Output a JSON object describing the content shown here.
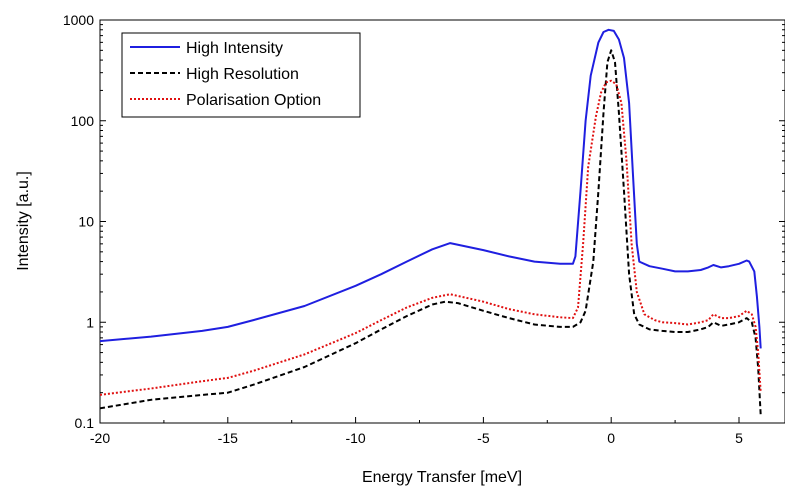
{
  "chart_data": {
    "type": "line",
    "title": "",
    "xlabel": "Energy Transfer [meV]",
    "ylabel": "Intensity [a.u.]",
    "xlim": [
      -20,
      6.8
    ],
    "ylim": [
      0.1,
      1000
    ],
    "yscale": "log",
    "grid": false,
    "legend_position": "top-left",
    "x_ticks": [
      -20,
      -15,
      -10,
      -5,
      0,
      5
    ],
    "x_tick_labels": [
      "-20",
      "-15",
      "-10",
      "-5",
      "0",
      "5"
    ],
    "y_ticks": [
      0.1,
      1,
      10,
      100,
      1000
    ],
    "y_tick_labels": [
      "0.1",
      "1",
      "10",
      "100",
      "1000"
    ],
    "series": [
      {
        "name": "High Intensity",
        "color": "#1f1fe0",
        "style": "solid",
        "x": [
          -20,
          -18,
          -16,
          -15,
          -14,
          -12,
          -10,
          -9,
          -8,
          -7,
          -6.3,
          -5,
          -4,
          -3,
          -2,
          -1.5,
          -1.4,
          -1.2,
          -1,
          -0.8,
          -0.5,
          -0.3,
          -0.1,
          0.1,
          0.3,
          0.5,
          0.7,
          0.85,
          1,
          1.1,
          1.5,
          2,
          2.5,
          3,
          3.5,
          3.8,
          4,
          4.3,
          4.6,
          5,
          5.3,
          5.4,
          5.6,
          5.7,
          5.8,
          5.85
        ],
        "values": [
          0.65,
          0.72,
          0.82,
          0.9,
          1.05,
          1.45,
          2.3,
          3.0,
          4.0,
          5.3,
          6.1,
          5.2,
          4.5,
          4.0,
          3.8,
          3.8,
          4.5,
          20,
          100,
          280,
          600,
          760,
          800,
          780,
          640,
          420,
          150,
          30,
          6,
          4.0,
          3.6,
          3.4,
          3.2,
          3.2,
          3.3,
          3.5,
          3.7,
          3.5,
          3.6,
          3.8,
          4.1,
          4.0,
          3.2,
          1.8,
          0.9,
          0.55
        ]
      },
      {
        "name": "High Resolution",
        "color": "#000000",
        "style": "dashed",
        "x": [
          -20,
          -18,
          -16,
          -15,
          -14,
          -12,
          -10,
          -9,
          -8,
          -7,
          -6.5,
          -6,
          -5,
          -4,
          -3,
          -2,
          -1.5,
          -1.2,
          -1,
          -0.7,
          -0.5,
          -0.3,
          -0.15,
          0,
          0.15,
          0.3,
          0.5,
          0.7,
          0.9,
          1.1,
          1.5,
          2,
          2.5,
          3,
          3.5,
          3.8,
          4,
          4.3,
          4.6,
          5,
          5.3,
          5.5,
          5.65,
          5.75,
          5.85
        ],
        "values": [
          0.14,
          0.17,
          0.19,
          0.2,
          0.24,
          0.36,
          0.62,
          0.85,
          1.15,
          1.5,
          1.6,
          1.55,
          1.3,
          1.1,
          0.95,
          0.9,
          0.9,
          1.0,
          1.3,
          4,
          20,
          120,
          380,
          500,
          380,
          120,
          20,
          3,
          1.2,
          0.95,
          0.85,
          0.82,
          0.8,
          0.8,
          0.85,
          0.9,
          1.0,
          0.92,
          0.95,
          1.0,
          1.1,
          1.0,
          0.7,
          0.35,
          0.12
        ]
      },
      {
        "name": "Polarisation Option",
        "color": "#e01010",
        "style": "dotted",
        "x": [
          -20,
          -18,
          -16,
          -15,
          -14,
          -12,
          -10,
          -9,
          -8,
          -7,
          -6.3,
          -5,
          -4,
          -3,
          -2,
          -1.5,
          -1.3,
          -1.1,
          -0.9,
          -0.6,
          -0.4,
          -0.2,
          0,
          0.2,
          0.4,
          0.6,
          0.8,
          1,
          1.3,
          1.7,
          2,
          2.5,
          3,
          3.5,
          3.8,
          4,
          4.3,
          4.6,
          5,
          5.3,
          5.5,
          5.65,
          5.75,
          5.85
        ],
        "values": [
          0.19,
          0.22,
          0.26,
          0.28,
          0.33,
          0.48,
          0.78,
          1.05,
          1.4,
          1.75,
          1.9,
          1.6,
          1.35,
          1.2,
          1.12,
          1.1,
          1.4,
          6,
          35,
          110,
          190,
          240,
          250,
          230,
          150,
          40,
          6,
          2.0,
          1.2,
          1.05,
          1.0,
          0.98,
          0.95,
          1.0,
          1.05,
          1.2,
          1.1,
          1.1,
          1.15,
          1.3,
          1.2,
          0.9,
          0.5,
          0.2
        ]
      }
    ]
  }
}
